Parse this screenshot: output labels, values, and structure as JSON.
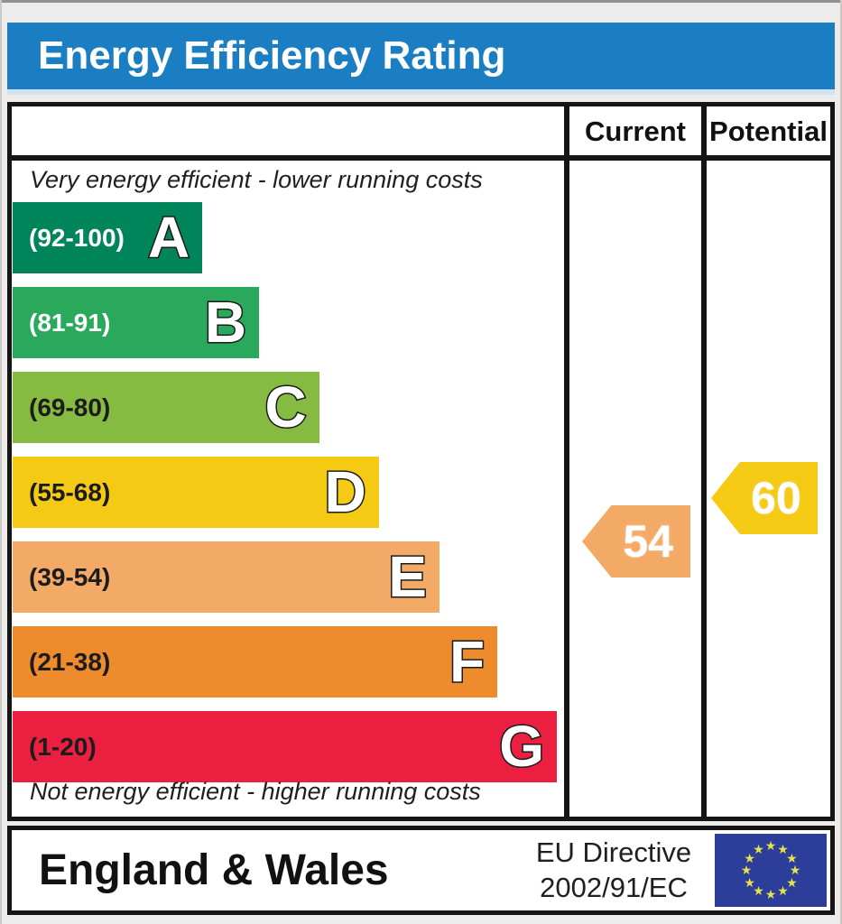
{
  "header": {
    "title": "Energy Efficiency Rating",
    "bar_color": "#1b7ec2"
  },
  "table": {
    "columns": {
      "current": "Current",
      "potential": "Potential"
    },
    "top_note": "Very energy efficient - lower running costs",
    "bottom_note": "Not energy efficient - higher running costs",
    "bands": [
      {
        "letter": "A",
        "range": "(92-100)",
        "color": "#00855a",
        "width_pct": 34.4,
        "label_color": "#ffffff"
      },
      {
        "letter": "B",
        "range": "(81-91)",
        "color": "#2aa95c",
        "width_pct": 44.7,
        "label_color": "#ffffff"
      },
      {
        "letter": "C",
        "range": "(69-80)",
        "color": "#85bb40",
        "width_pct": 55.6,
        "label_color": "#1c1c1c"
      },
      {
        "letter": "D",
        "range": "(55-68)",
        "color": "#f4ca15",
        "width_pct": 66.4,
        "label_color": "#1c1c1c"
      },
      {
        "letter": "E",
        "range": "(39-54)",
        "color": "#f4aa67",
        "width_pct": 77.4,
        "label_color": "#1c1c1c"
      },
      {
        "letter": "F",
        "range": "(21-38)",
        "color": "#ee8b2d",
        "width_pct": 87.9,
        "label_color": "#1c1c1c"
      },
      {
        "letter": "G",
        "range": "(1-20)",
        "color": "#eb1f3f",
        "width_pct": 98.7,
        "label_color": "#1c1c1c"
      }
    ],
    "current": {
      "value": "54",
      "color": "#f4aa67",
      "band": "E"
    },
    "potential": {
      "value": "60",
      "color": "#f4ca15",
      "band": "D"
    }
  },
  "footer": {
    "region": "England & Wales",
    "directive_line1": "EU Directive",
    "directive_line2": "2002/91/EC",
    "eu_flag": {
      "bg": "#2c3e99",
      "star_color": "#e5e24e",
      "star_count": 12,
      "star_char": "★"
    }
  },
  "chart_data": {
    "type": "bar",
    "orientation": "horizontal",
    "title": "Energy Efficiency Rating",
    "categories": [
      "A",
      "B",
      "C",
      "D",
      "E",
      "F",
      "G"
    ],
    "band_ranges": [
      "92-100",
      "81-91",
      "69-80",
      "55-68",
      "39-54",
      "21-38",
      "1-20"
    ],
    "band_colors": [
      "#00855a",
      "#2aa95c",
      "#85bb40",
      "#f4ca15",
      "#f4aa67",
      "#ee8b2d",
      "#eb1f3f"
    ],
    "bar_lengths_pct": [
      34.4,
      44.7,
      55.6,
      66.4,
      77.4,
      87.9,
      98.7
    ],
    "scale": [
      1,
      100
    ],
    "series": [
      {
        "name": "Current",
        "value": 54,
        "band": "E",
        "color": "#f4aa67"
      },
      {
        "name": "Potential",
        "value": 60,
        "band": "D",
        "color": "#f4ca15"
      }
    ],
    "annotations": [
      "Very energy efficient - lower running costs",
      "Not energy efficient - higher running costs"
    ],
    "legend_position": "none",
    "grid": false,
    "footer_text": "England & Wales — EU Directive 2002/91/EC"
  }
}
